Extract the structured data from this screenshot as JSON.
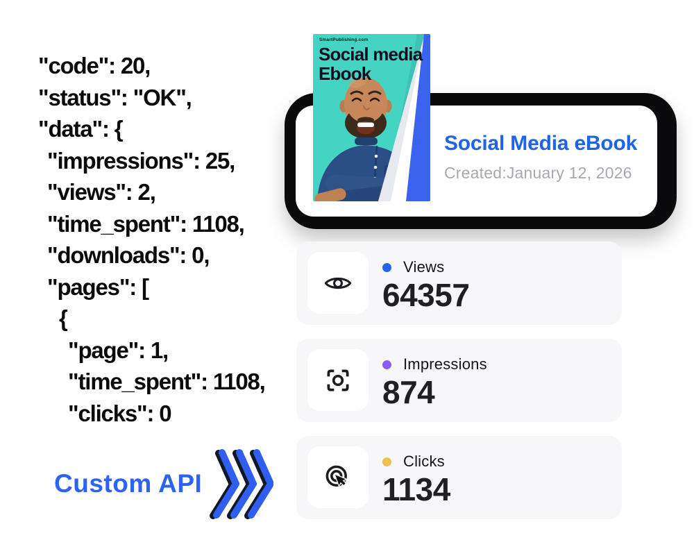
{
  "page": {
    "background": "#FFFFFF"
  },
  "api_response": {
    "lines": [
      {
        "indent": 0,
        "text": "\"code\": 20,"
      },
      {
        "indent": 0,
        "text": "\"status\": \"OK\","
      },
      {
        "indent": 0,
        "text": "\"data\": {"
      },
      {
        "indent": 1,
        "text": "\"impressions\": 25,"
      },
      {
        "indent": 1,
        "text": "\"views\": 2,"
      },
      {
        "indent": 1,
        "text": "\"time_spent\": 1108,"
      },
      {
        "indent": 1,
        "text": "\"downloads\": 0,"
      },
      {
        "indent": 1,
        "text": "\"pages\": ["
      },
      {
        "indent": 2,
        "text": "{"
      },
      {
        "indent": 3,
        "text": "\"page\": 1,"
      },
      {
        "indent": 3,
        "text": "\"time_spent\": 1108,"
      },
      {
        "indent": 3,
        "text": "\"clicks\": 0"
      }
    ]
  },
  "ebook": {
    "cover": {
      "publisher": "SmartPublishing.com",
      "title_line1": "Social media",
      "title_line2": "Ebook",
      "background_color": "#45D4C3",
      "fold_color": "#3B63EF"
    },
    "info_card": {
      "title": "Social Media eBook",
      "subtitle": "Created:January 12, 2026",
      "title_color": "#1F64E8",
      "subtitle_color": "#A6A9AF"
    }
  },
  "stats": [
    {
      "label": "Views",
      "value": "64357",
      "dot_color": "#2563EB",
      "icon": "eye-icon"
    },
    {
      "label": "Impressions",
      "value": "874",
      "dot_color": "#8B5CF6",
      "icon": "scan-icon"
    },
    {
      "label": "Clicks",
      "value": "1134",
      "dot_color": "#EFC14F",
      "icon": "cursor-click-icon"
    }
  ],
  "footer": {
    "api_label": "Custom API",
    "api_label_color": "#2E62F0",
    "chevron_color": "#2F5EF0"
  }
}
